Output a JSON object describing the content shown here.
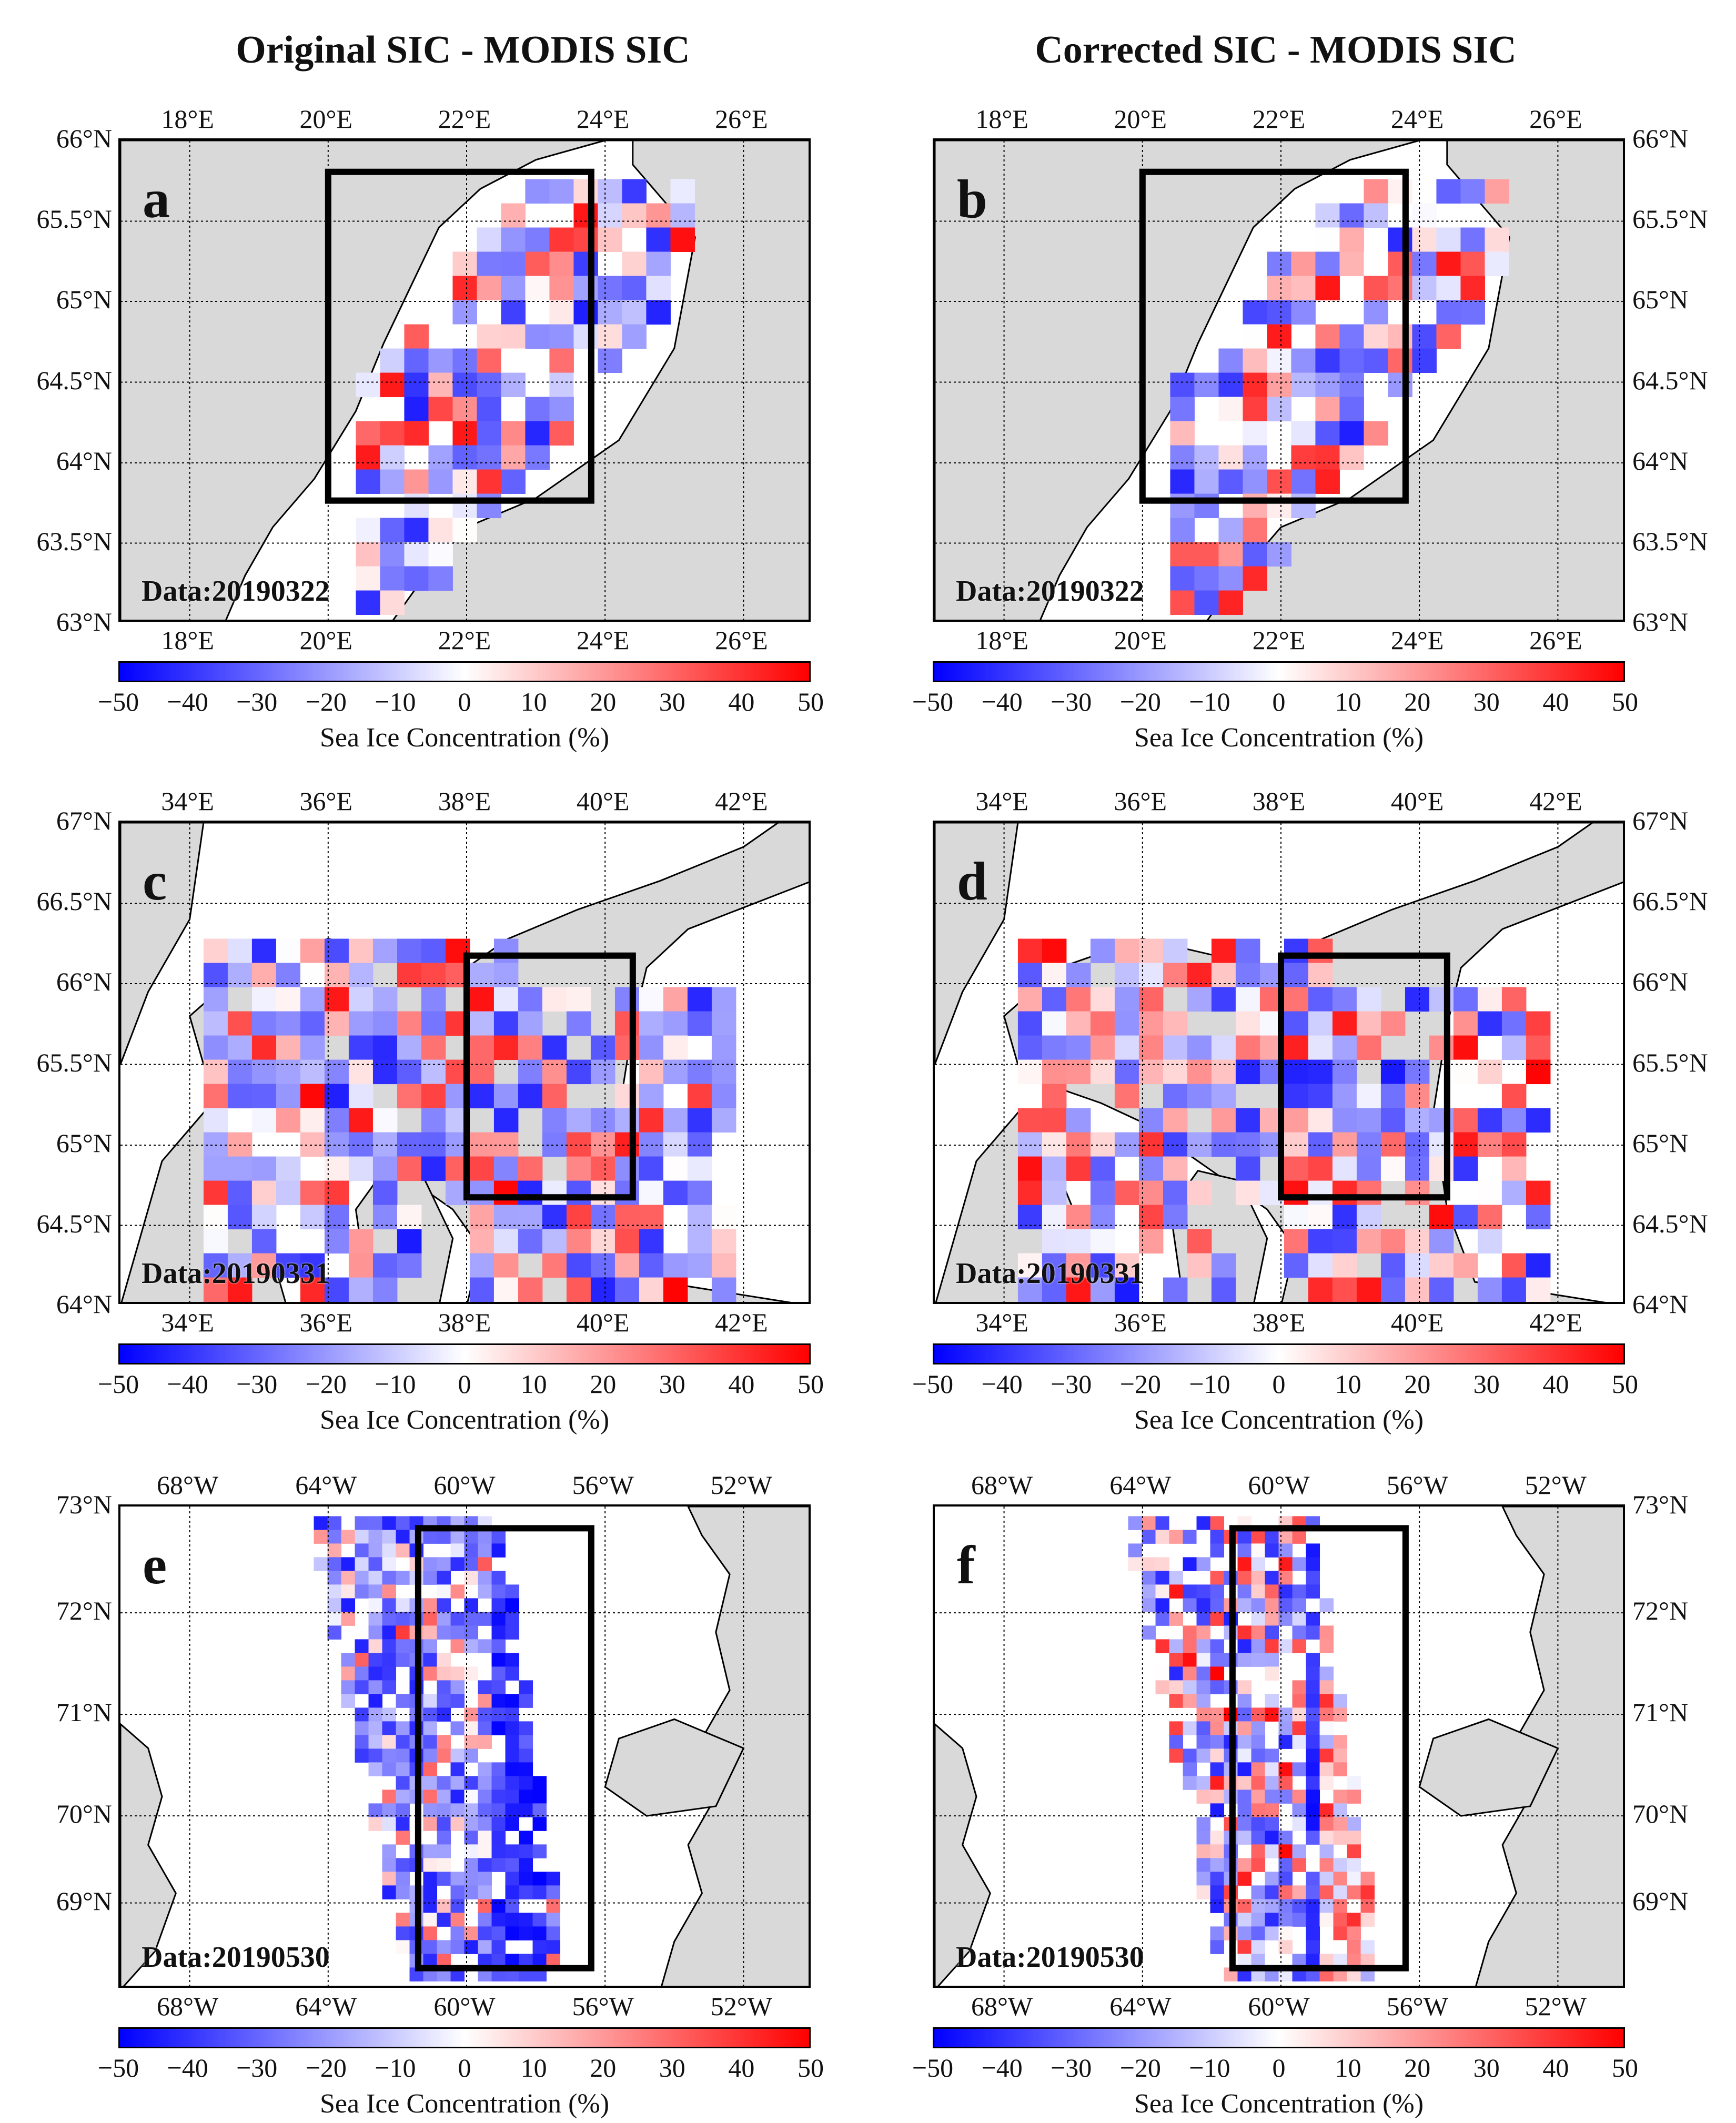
{
  "columns": {
    "left_title": "Original SIC - MODIS SIC",
    "right_title": "Corrected SIC - MODIS SIC"
  },
  "colorbar": {
    "label": "Sea Ice Concentration (%)",
    "min": -50,
    "max": 50,
    "ticks": [
      "−50",
      "−40",
      "−30",
      "−20",
      "−10",
      "0",
      "10",
      "20",
      "30",
      "40",
      "50"
    ],
    "low_color": "#0000ff",
    "mid_color": "#ffffff",
    "high_color": "#ff0000"
  },
  "palette": {
    "land": "#d9d9d9",
    "water": "#ffffff",
    "grid": "#000000"
  },
  "rows": [
    {
      "row": "gulf-of-bothnia",
      "lon_ticks": [
        "18°E",
        "20°E",
        "22°E",
        "24°E",
        "26°E"
      ],
      "lat_ticks": [
        "66°N",
        "65.5°N",
        "65°N",
        "64.5°N",
        "64°N",
        "63.5°N",
        "63°N"
      ],
      "panels": [
        {
          "letter": "a",
          "date": "Data:20190322"
        },
        {
          "letter": "b",
          "date": "Data:20190322"
        }
      ]
    },
    {
      "row": "white-sea",
      "lon_ticks": [
        "34°E",
        "36°E",
        "38°E",
        "40°E",
        "42°E"
      ],
      "lat_ticks": [
        "67°N",
        "66.5°N",
        "66°N",
        "65.5°N",
        "65°N",
        "64.5°N",
        "64°N"
      ],
      "panels": [
        {
          "letter": "c",
          "date": "Data:20190331"
        },
        {
          "letter": "d",
          "date": "Data:20190331"
        }
      ]
    },
    {
      "row": "baffin-bay",
      "lon_ticks": [
        "68°W",
        "64°W",
        "60°W",
        "56°W",
        "52°W"
      ],
      "lat_ticks": [
        "73°N",
        "72°N",
        "71°N",
        "70°N",
        "69°N"
      ],
      "panels": [
        {
          "letter": "e",
          "date": "Data:20190530"
        },
        {
          "letter": "f",
          "date": "Data:20190530"
        }
      ]
    }
  ]
}
